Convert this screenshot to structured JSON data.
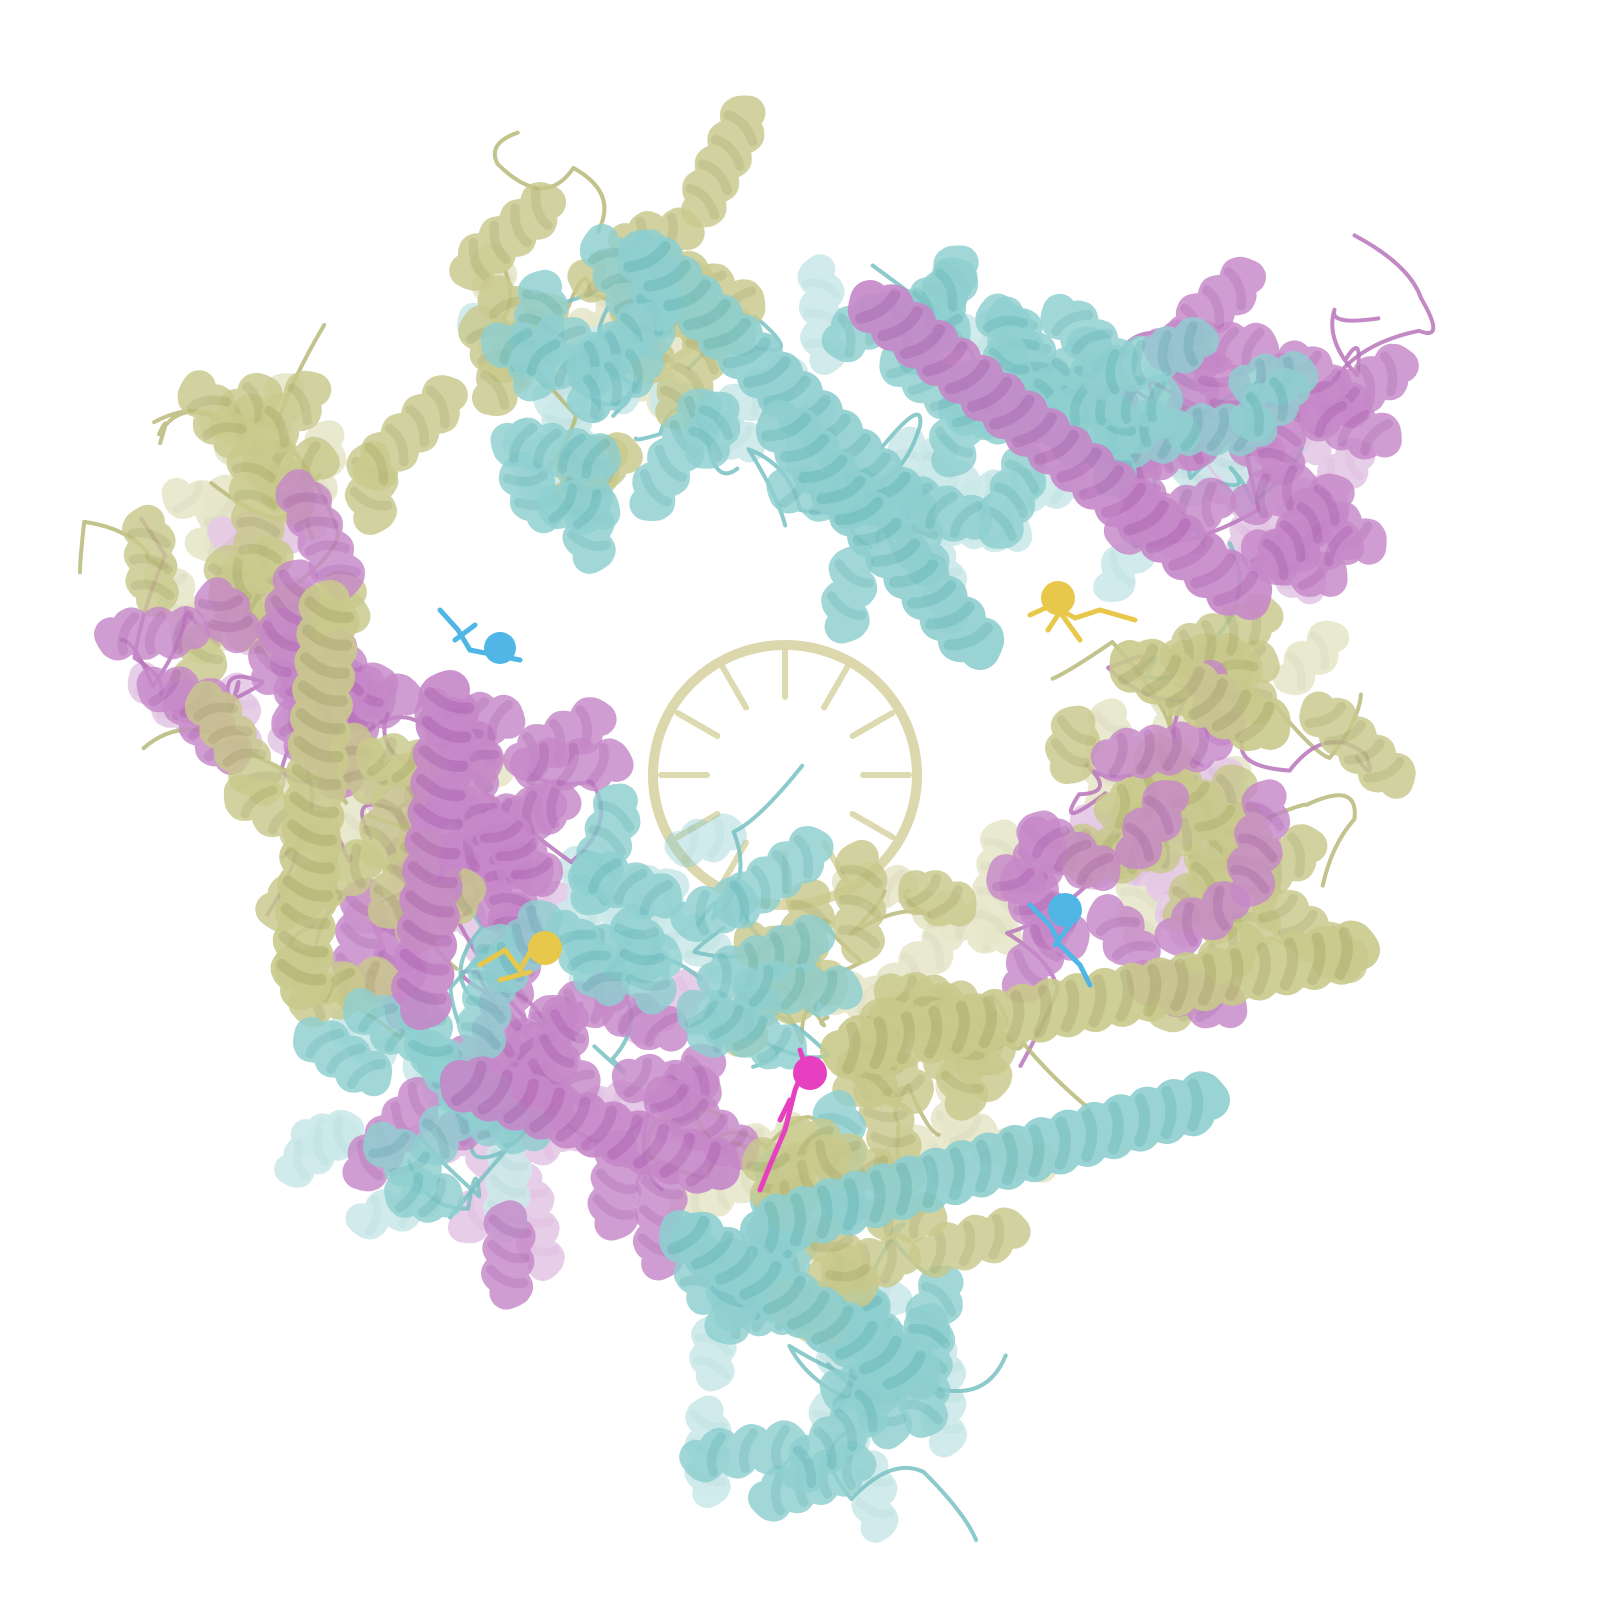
{
  "palette": {
    "olive": "#c9c98c",
    "olive_dark": "#b9b97a",
    "teal": "#8ecfd0",
    "teal_dark": "#79c1c3",
    "magenta": "#c688c8",
    "magenta_dark": "#b874bb",
    "ligand_yellow": "#e8c84a",
    "ligand_blue": "#4fb6e6",
    "ligand_pink": "#e640c0",
    "dna": "#d8d3a4"
  },
  "legend": {
    "chain_colors": [
      "olive",
      "teal",
      "magenta"
    ],
    "ligand_colors": [
      "ligand_yellow",
      "ligand_blue",
      "ligand_pink"
    ]
  }
}
